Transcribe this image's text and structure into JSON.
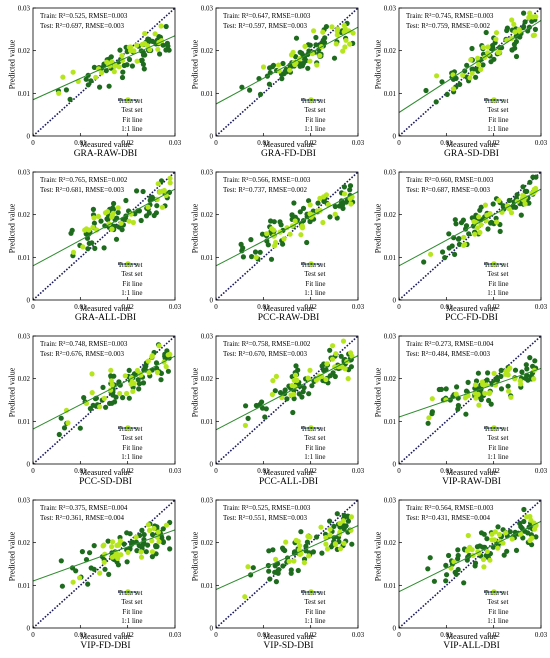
{
  "chart_data": [
    {
      "type": "scatter",
      "title": "GRA-RAW-DBI",
      "stat_train": "Train: R²=0.525, RMSE=0.003",
      "stat_test": "Test: R²=0.697, RMSE=0.003",
      "fit": {
        "slope": 0.5,
        "intercept": 0.0085
      },
      "seed": 11
    },
    {
      "type": "scatter",
      "title": "GRA-FD-DBI",
      "stat_train": "Train: R²=0.647, RMSE=0.003",
      "stat_test": "Test: R²=0.597, RMSE=0.003",
      "fit": {
        "slope": 0.6,
        "intercept": 0.0075
      },
      "seed": 12
    },
    {
      "type": "scatter",
      "title": "GRA-SD-DBI",
      "stat_train": "Train: R²=0.745, RMSE=0.003",
      "stat_test": "Test: R²=0.759, RMSE=0.002",
      "fit": {
        "slope": 0.72,
        "intercept": 0.0055
      },
      "seed": 13
    },
    {
      "type": "scatter",
      "title": "GRA-ALL-DBI",
      "stat_train": "Train: R²=0.765, RMSE=0.002",
      "stat_test": "Test: R²=0.681, RMSE=0.003",
      "fit": {
        "slope": 0.6,
        "intercept": 0.008
      },
      "seed": 14
    },
    {
      "type": "scatter",
      "title": "PCC-RAW-DBI",
      "stat_train": "Train: R²=0.566, RMSE=0.003",
      "stat_test": "Test: R²=0.737, RMSE=0.002",
      "fit": {
        "slope": 0.58,
        "intercept": 0.008
      },
      "seed": 15
    },
    {
      "type": "scatter",
      "title": "PCC-FD-DBI",
      "stat_train": "Train: R²=0.660, RMSE=0.003",
      "stat_test": "Test: R²=0.687, RMSE=0.003",
      "fit": {
        "slope": 0.6,
        "intercept": 0.008
      },
      "seed": 16
    },
    {
      "type": "scatter",
      "title": "PCC-SD-DBI",
      "stat_train": "Train: R²=0.748, RMSE=0.003",
      "stat_test": "Test: R²=0.676, RMSE=0.003",
      "fit": {
        "slope": 0.57,
        "intercept": 0.0082
      },
      "seed": 17
    },
    {
      "type": "scatter",
      "title": "PCC-ALL-DBI",
      "stat_train": "Train: R²=0.758, RMSE=0.002",
      "stat_test": "Test: R²=0.670, RMSE=0.003",
      "fit": {
        "slope": 0.58,
        "intercept": 0.008
      },
      "seed": 18
    },
    {
      "type": "scatter",
      "title": "VIP-RAW-DBI",
      "stat_train": "Train: R²=0.273, RMSE=0.004",
      "stat_test": "Test: R²=0.484, RMSE=0.003",
      "fit": {
        "slope": 0.38,
        "intercept": 0.011
      },
      "seed": 19
    },
    {
      "type": "scatter",
      "title": "VIP-FD-DBI",
      "stat_train": "Train: R²=0.375, RMSE=0.004",
      "stat_test": "Test: R²=0.361, RMSE=0.004",
      "fit": {
        "slope": 0.4,
        "intercept": 0.011
      },
      "seed": 20
    },
    {
      "type": "scatter",
      "title": "VIP-SD-DBI",
      "stat_train": "Train: R²=0.525, RMSE=0.003",
      "stat_test": "Test: R²=0.551, RMSE=0.003",
      "fit": {
        "slope": 0.5,
        "intercept": 0.009
      },
      "seed": 21
    },
    {
      "type": "scatter",
      "title": "VIP-ALL-DBI",
      "stat_train": "Train: R²=0.564, RMSE=0.003",
      "stat_test": "Test: R²=0.431, RMSE=0.004",
      "fit": {
        "slope": 0.55,
        "intercept": 0.0085
      },
      "seed": 22
    }
  ],
  "shared": {
    "xlabel": "Measured value",
    "ylabel": "Predicted value",
    "xlim": [
      0,
      0.03
    ],
    "ylim": [
      0,
      0.03
    ],
    "xticks": [
      "0",
      "0.01",
      "0.02",
      "0.03"
    ],
    "yticks": [
      "0",
      "0.01",
      "0.02",
      "0.03"
    ],
    "legend": [
      "Train set",
      "Test set",
      "Fit line",
      "1:1 line"
    ],
    "legend_position": "lower-right",
    "colors": {
      "train": "#1e6b1e",
      "test": "#b5e61d",
      "fit": "#2e8b2e",
      "identity": "#1a1a5e"
    }
  }
}
